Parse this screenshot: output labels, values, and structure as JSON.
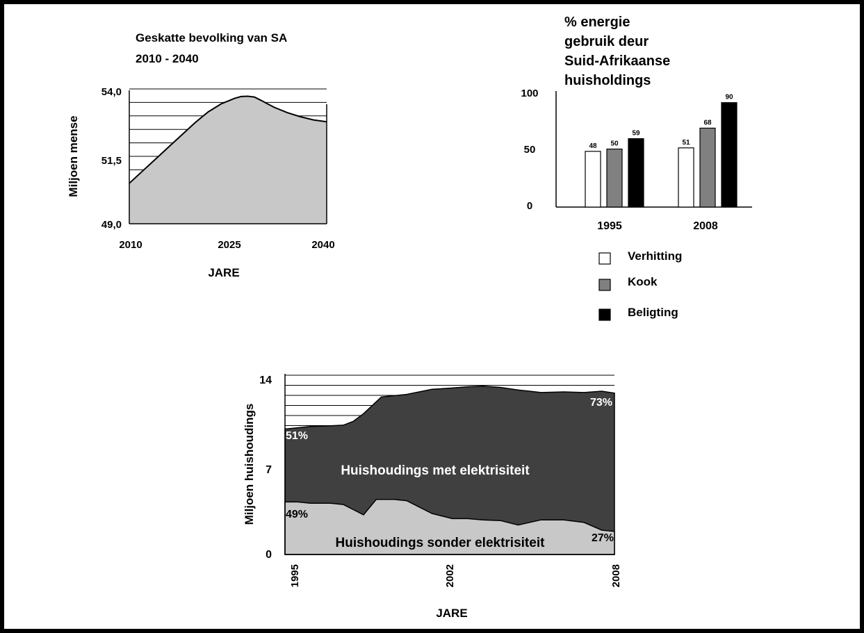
{
  "chart_data": [
    {
      "type": "area",
      "title": "Geskatte bevolking van SA",
      "subtitle": "2010 - 2040",
      "xlabel": "JARE",
      "ylabel": "Miljoen mense",
      "x_ticks": [
        "2010",
        "2025",
        "2040"
      ],
      "y_ticks": [
        "49,0",
        "51,5",
        "54,0"
      ],
      "ylim": [
        49.0,
        54.0
      ],
      "xlim": [
        2010,
        2040
      ],
      "grid": true,
      "color": "#c8c8c8",
      "x": [
        2010,
        2012,
        2014,
        2016,
        2018,
        2020,
        2022,
        2024,
        2026,
        2027,
        2028,
        2029,
        2030,
        2032,
        2034,
        2036,
        2038,
        2040
      ],
      "values": [
        50.5,
        50.95,
        51.4,
        51.85,
        52.3,
        52.75,
        53.15,
        53.45,
        53.65,
        53.72,
        53.73,
        53.7,
        53.58,
        53.32,
        53.12,
        52.97,
        52.85,
        52.78
      ]
    },
    {
      "type": "bar",
      "title": "% energie gebruik deur Suid-Afrikaanse huisholdings",
      "title_lines": [
        "% energie",
        "gebruik deur",
        "Suid-Afrikaanse",
        "huisholdings"
      ],
      "categories": [
        "1995",
        "2008"
      ],
      "y_ticks": [
        "0",
        "50",
        "100"
      ],
      "ylim": [
        0,
        100
      ],
      "series": [
        {
          "name": "Verhitting",
          "values": [
            48,
            51
          ],
          "labels": [
            "48",
            "51"
          ],
          "color": "#ffffff"
        },
        {
          "name": "Kook",
          "values": [
            50,
            68
          ],
          "labels": [
            "50",
            "68"
          ],
          "color": "#808080"
        },
        {
          "name": "Beligting",
          "values": [
            59,
            90
          ],
          "labels": [
            "59",
            "90"
          ],
          "color": "#000000"
        }
      ],
      "legend_placement": "bottom"
    },
    {
      "type": "area",
      "xlabel": "JARE",
      "ylabel": "Miljoen huishoudings",
      "x_ticks": [
        "1995",
        "2002",
        "2008"
      ],
      "y_ticks": [
        "0",
        "7",
        "14"
      ],
      "ylim": [
        0,
        14
      ],
      "xlim": [
        1995,
        2008
      ],
      "grid": true,
      "series": [
        {
          "name": "Huishoudings met elektrisiteit",
          "color": "#404040",
          "x": [
            1995,
            1995.5,
            1996,
            1996.8,
            1997.3,
            1997.7,
            1998.1,
            1998.8,
            1999.8,
            2000.8,
            2001.6,
            2002.2,
            2002.8,
            2003.5,
            2004.2,
            2005.1,
            2006.0,
            2006.8,
            2007.5,
            2008
          ],
          "values": [
            9.8,
            9.9,
            10.0,
            10.05,
            10.1,
            10.4,
            11.0,
            12.3,
            12.5,
            12.9,
            13.0,
            13.1,
            13.15,
            13.05,
            12.85,
            12.65,
            12.7,
            12.65,
            12.75,
            12.6
          ],
          "start_label": "51%",
          "end_label": "73%"
        },
        {
          "name": "Huishoudings sonder elektrisiteit",
          "color": "#c8c8c8",
          "x": [
            1995,
            1995.5,
            1996,
            1996.8,
            1997.3,
            1997.7,
            1998.1,
            1998.6,
            1999.3,
            1999.8,
            2000.8,
            2001.6,
            2002.2,
            2002.8,
            2003.5,
            2004.2,
            2005.1,
            2006.0,
            2006.8,
            2007.5,
            2008
          ],
          "values": [
            4.1,
            4.1,
            4.0,
            4.0,
            3.9,
            3.5,
            3.1,
            4.3,
            4.3,
            4.2,
            3.2,
            2.8,
            2.8,
            2.7,
            2.65,
            2.3,
            2.7,
            2.7,
            2.5,
            1.9,
            1.8
          ],
          "start_label": "49%",
          "end_label": "27%"
        }
      ]
    }
  ]
}
